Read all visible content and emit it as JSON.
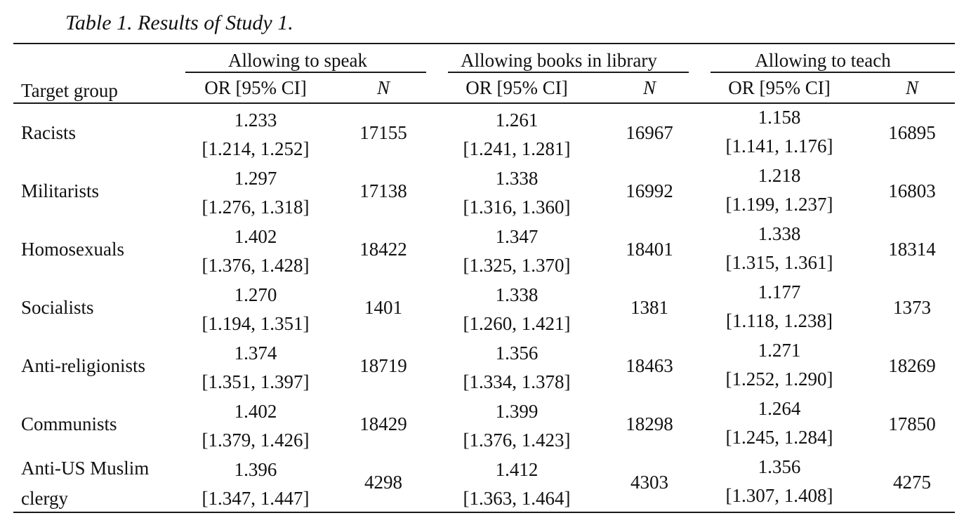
{
  "caption": "Table 1. Results of Study 1.",
  "table": {
    "group_headers": [
      "Allowing to speak",
      "Allowing books in library",
      "Allowing to teach"
    ],
    "column_headers": {
      "target_group": "Target group",
      "or_ci": "OR [95% CI]",
      "n": "N"
    },
    "rows": [
      {
        "group": [
          "Racists"
        ],
        "speak": {
          "or": "1.233",
          "ci": "[1.214, 1.252]",
          "n": "17155"
        },
        "library": {
          "or": "1.261",
          "ci": "[1.241, 1.281]",
          "n": "16967"
        },
        "teach": {
          "or": "1.158",
          "ci": "[1.141, 1.176]",
          "n": "16895"
        }
      },
      {
        "group": [
          "Militarists"
        ],
        "speak": {
          "or": "1.297",
          "ci": "[1.276, 1.318]",
          "n": "17138"
        },
        "library": {
          "or": "1.338",
          "ci": "[1.316, 1.360]",
          "n": "16992"
        },
        "teach": {
          "or": "1.218",
          "ci": "[1.199, 1.237]",
          "n": "16803"
        }
      },
      {
        "group": [
          "Homosexuals"
        ],
        "speak": {
          "or": "1.402",
          "ci": "[1.376, 1.428]",
          "n": "18422"
        },
        "library": {
          "or": "1.347",
          "ci": "[1.325, 1.370]",
          "n": "18401"
        },
        "teach": {
          "or": "1.338",
          "ci": "[1.315, 1.361]",
          "n": "18314"
        }
      },
      {
        "group": [
          "Socialists"
        ],
        "speak": {
          "or": "1.270",
          "ci": "[1.194, 1.351]",
          "n": "1401"
        },
        "library": {
          "or": "1.338",
          "ci": "[1.260, 1.421]",
          "n": "1381"
        },
        "teach": {
          "or": "1.177",
          "ci": "[1.118, 1.238]",
          "n": "1373"
        }
      },
      {
        "group": [
          "Anti-religionists"
        ],
        "speak": {
          "or": "1.374",
          "ci": "[1.351, 1.397]",
          "n": "18719"
        },
        "library": {
          "or": "1.356",
          "ci": "[1.334, 1.378]",
          "n": "18463"
        },
        "teach": {
          "or": "1.271",
          "ci": "[1.252, 1.290]",
          "n": "18269"
        }
      },
      {
        "group": [
          "Communists"
        ],
        "speak": {
          "or": "1.402",
          "ci": "[1.379, 1.426]",
          "n": "18429"
        },
        "library": {
          "or": "1.399",
          "ci": "[1.376, 1.423]",
          "n": "18298"
        },
        "teach": {
          "or": "1.264",
          "ci": "[1.245, 1.284]",
          "n": "17850"
        }
      },
      {
        "group": [
          "Anti-US Muslim",
          "clergy"
        ],
        "speak": {
          "or": "1.396",
          "ci": "[1.347, 1.447]",
          "n": "4298"
        },
        "library": {
          "or": "1.412",
          "ci": "[1.363, 1.464]",
          "n": "4303"
        },
        "teach": {
          "or": "1.356",
          "ci": "[1.307, 1.408]",
          "n": "4275"
        }
      }
    ]
  }
}
